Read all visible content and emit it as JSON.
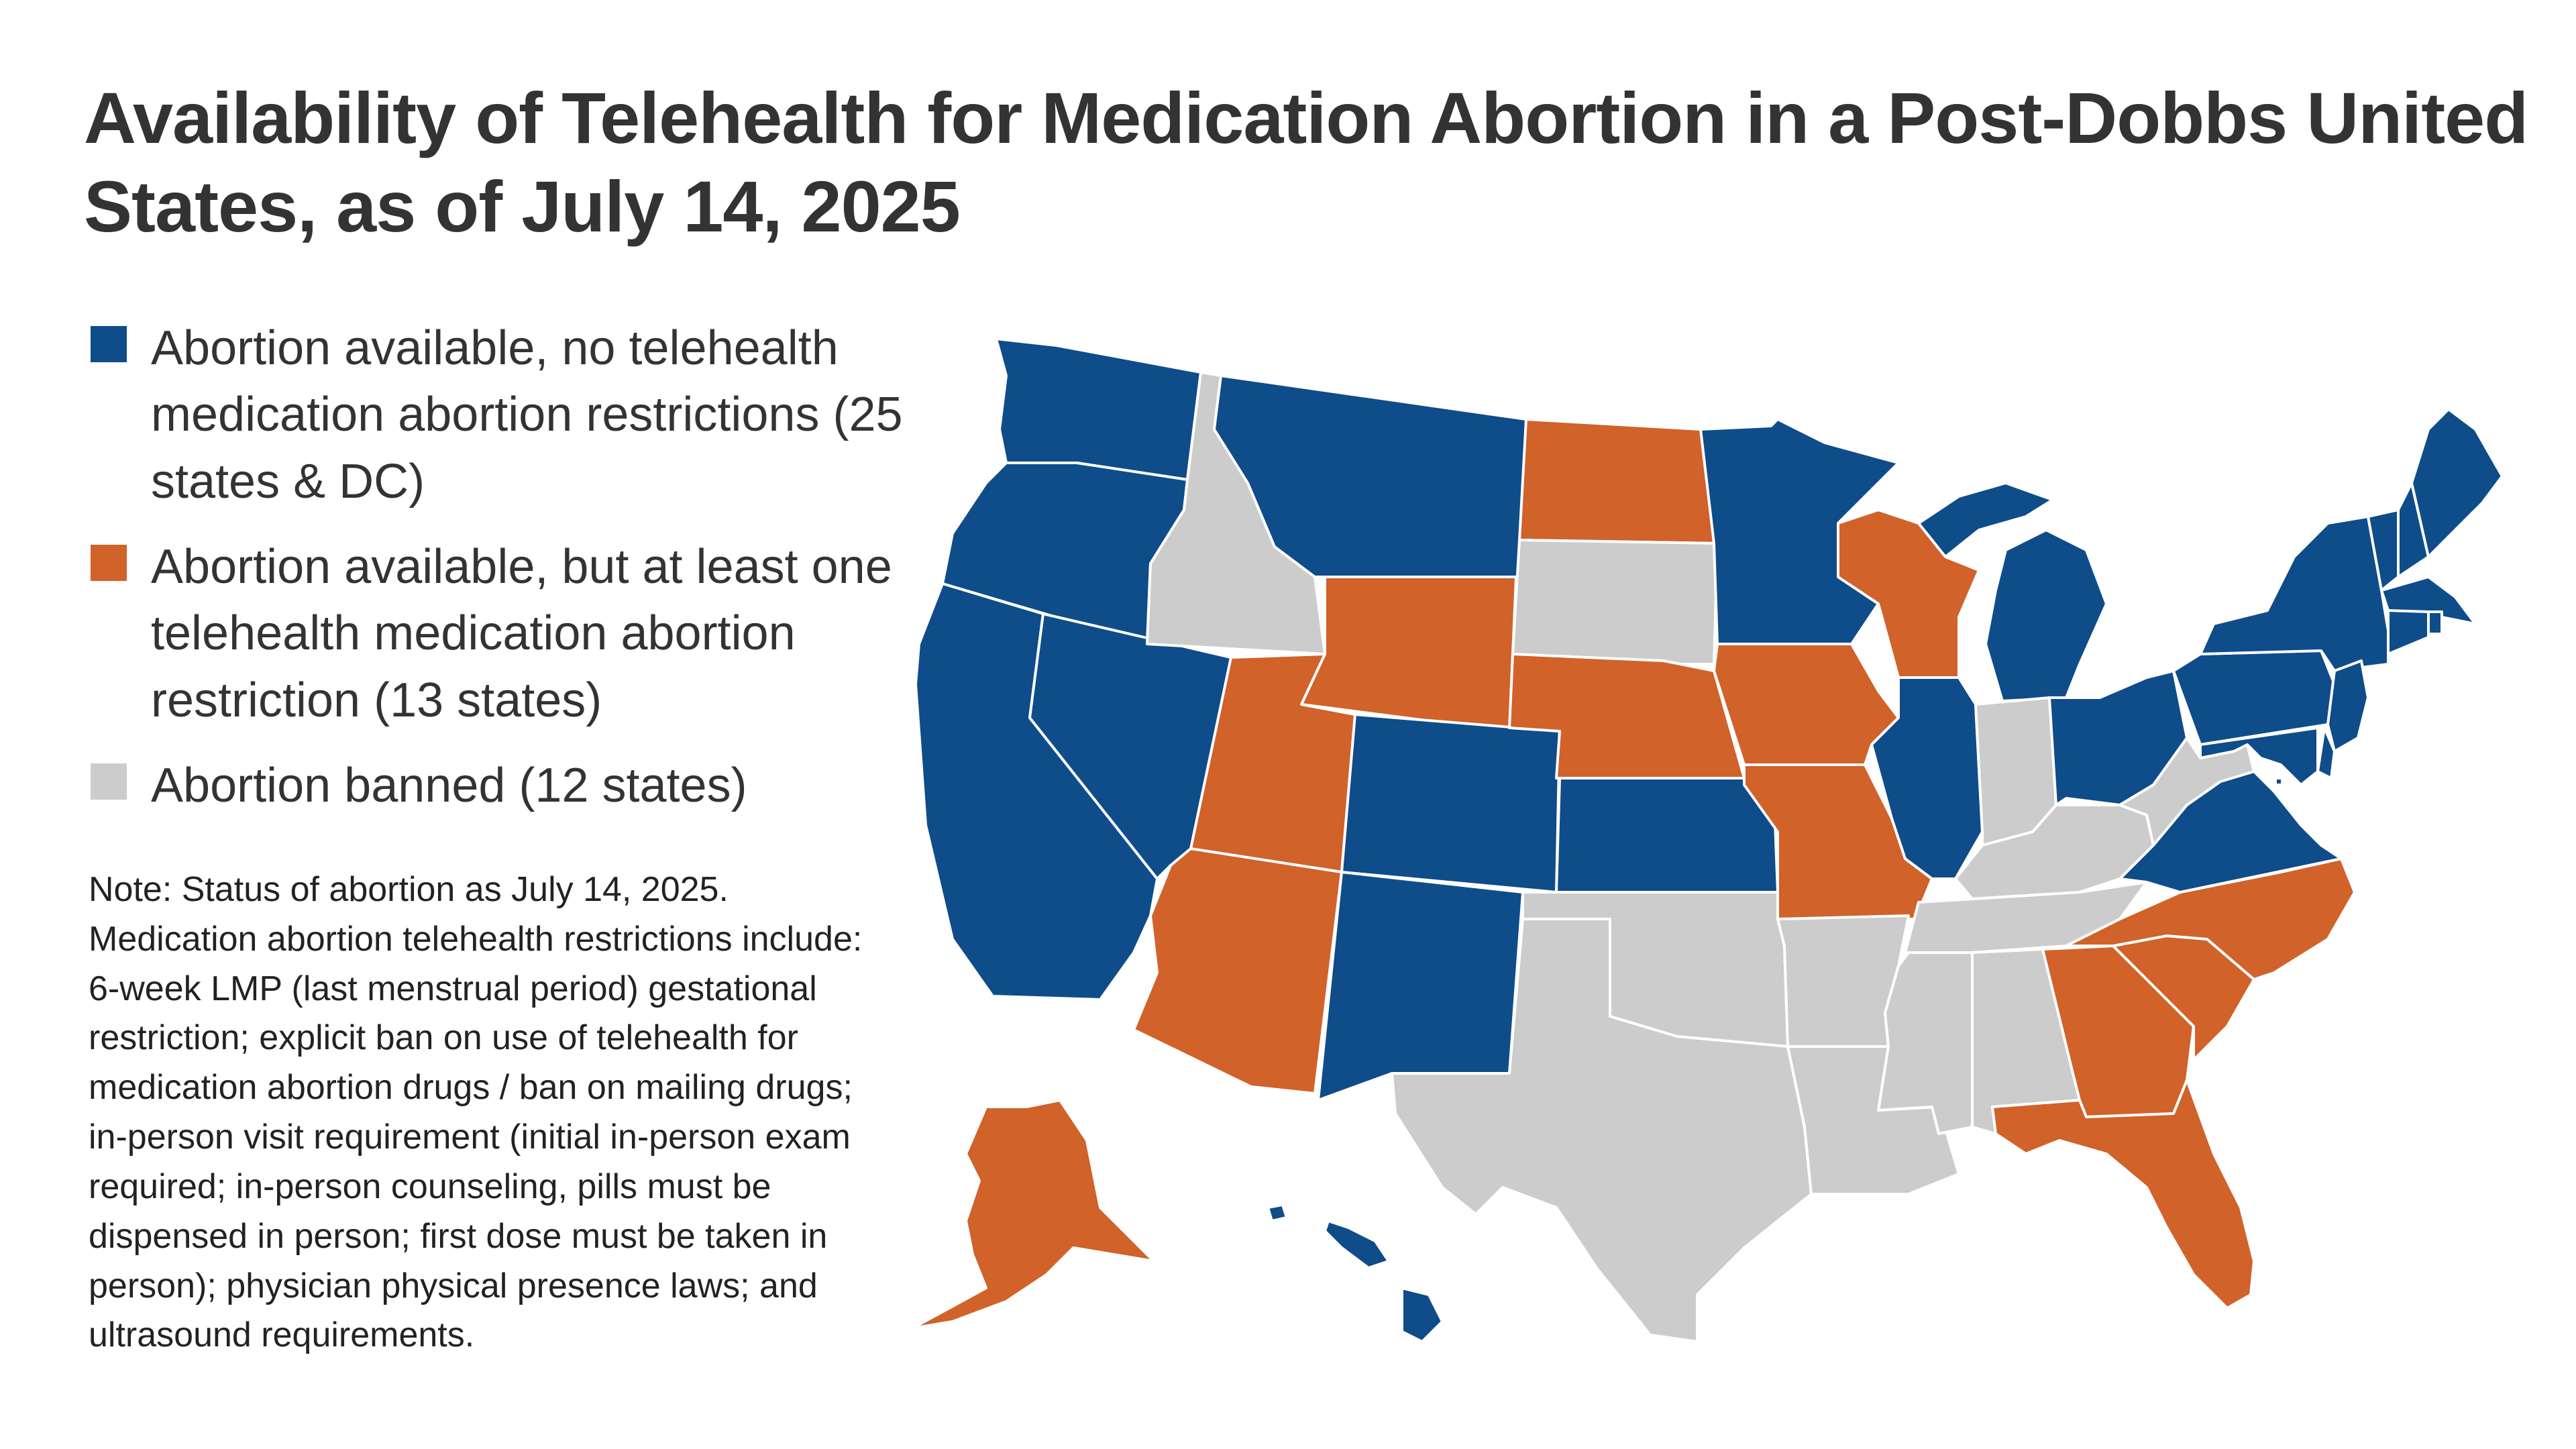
{
  "title": "Availability of Telehealth for Medication Abortion in a Post-Dobbs United States, as of July 14, 2025",
  "legend": [
    {
      "key": "available_no_restrictions",
      "label": "Abortion available, no telehealth medication abortion restrictions (25 states & DC)",
      "color": "#0f4c8a"
    },
    {
      "key": "available_with_restriction",
      "label": "Abortion available, but at least one telehealth medication abortion restriction (13 states)",
      "color": "#d0622a"
    },
    {
      "key": "banned",
      "label": "Abortion banned (12 states)",
      "color": "#cccccc"
    }
  ],
  "note": "Note: Status of abortion as July 14, 2025. Medication abortion telehealth restrictions include: 6-week LMP (last menstrual period) gestational restriction; explicit ban on use of telehealth for medication abortion drugs / ban on mailing drugs; in-person visit requirement (initial in-person exam required; in-person counseling, pills must be dispensed in person; first dose must be taken in person); physician physical presence laws; and ultrasound requirements.",
  "map": {
    "states": [
      {
        "abbr": "WA",
        "name": "Washington",
        "status": "available_no_restrictions"
      },
      {
        "abbr": "OR",
        "name": "Oregon",
        "status": "available_no_restrictions"
      },
      {
        "abbr": "CA",
        "name": "California",
        "status": "available_no_restrictions"
      },
      {
        "abbr": "NV",
        "name": "Nevada",
        "status": "available_no_restrictions"
      },
      {
        "abbr": "ID",
        "name": "Idaho",
        "status": "banned"
      },
      {
        "abbr": "MT",
        "name": "Montana",
        "status": "available_no_restrictions"
      },
      {
        "abbr": "WY",
        "name": "Wyoming",
        "status": "available_with_restriction"
      },
      {
        "abbr": "UT",
        "name": "Utah",
        "status": "available_with_restriction"
      },
      {
        "abbr": "AZ",
        "name": "Arizona",
        "status": "available_with_restriction"
      },
      {
        "abbr": "CO",
        "name": "Colorado",
        "status": "available_no_restrictions"
      },
      {
        "abbr": "NM",
        "name": "New Mexico",
        "status": "available_no_restrictions"
      },
      {
        "abbr": "ND",
        "name": "North Dakota",
        "status": "available_with_restriction"
      },
      {
        "abbr": "SD",
        "name": "South Dakota",
        "status": "banned"
      },
      {
        "abbr": "NE",
        "name": "Nebraska",
        "status": "available_with_restriction"
      },
      {
        "abbr": "KS",
        "name": "Kansas",
        "status": "available_no_restrictions"
      },
      {
        "abbr": "OK",
        "name": "Oklahoma",
        "status": "banned"
      },
      {
        "abbr": "TX",
        "name": "Texas",
        "status": "banned"
      },
      {
        "abbr": "MN",
        "name": "Minnesota",
        "status": "available_no_restrictions"
      },
      {
        "abbr": "IA",
        "name": "Iowa",
        "status": "available_with_restriction"
      },
      {
        "abbr": "MO",
        "name": "Missouri",
        "status": "available_with_restriction"
      },
      {
        "abbr": "AR",
        "name": "Arkansas",
        "status": "banned"
      },
      {
        "abbr": "LA",
        "name": "Louisiana",
        "status": "banned"
      },
      {
        "abbr": "WI",
        "name": "Wisconsin",
        "status": "available_with_restriction"
      },
      {
        "abbr": "IL",
        "name": "Illinois",
        "status": "available_no_restrictions"
      },
      {
        "abbr": "MI",
        "name": "Michigan",
        "status": "available_no_restrictions"
      },
      {
        "abbr": "IN",
        "name": "Indiana",
        "status": "banned"
      },
      {
        "abbr": "OH",
        "name": "Ohio",
        "status": "available_no_restrictions"
      },
      {
        "abbr": "KY",
        "name": "Kentucky",
        "status": "banned"
      },
      {
        "abbr": "TN",
        "name": "Tennessee",
        "status": "banned"
      },
      {
        "abbr": "MS",
        "name": "Mississippi",
        "status": "banned"
      },
      {
        "abbr": "AL",
        "name": "Alabama",
        "status": "banned"
      },
      {
        "abbr": "GA",
        "name": "Georgia",
        "status": "available_with_restriction"
      },
      {
        "abbr": "FL",
        "name": "Florida",
        "status": "available_with_restriction"
      },
      {
        "abbr": "SC",
        "name": "South Carolina",
        "status": "available_with_restriction"
      },
      {
        "abbr": "NC",
        "name": "North Carolina",
        "status": "available_with_restriction"
      },
      {
        "abbr": "VA",
        "name": "Virginia",
        "status": "available_no_restrictions"
      },
      {
        "abbr": "WV",
        "name": "West Virginia",
        "status": "banned"
      },
      {
        "abbr": "PA",
        "name": "Pennsylvania",
        "status": "available_no_restrictions"
      },
      {
        "abbr": "NY",
        "name": "New York",
        "status": "available_no_restrictions"
      },
      {
        "abbr": "VT",
        "name": "Vermont",
        "status": "available_no_restrictions"
      },
      {
        "abbr": "NH",
        "name": "New Hampshire",
        "status": "available_no_restrictions"
      },
      {
        "abbr": "ME",
        "name": "Maine",
        "status": "available_no_restrictions"
      },
      {
        "abbr": "MA",
        "name": "Massachusetts",
        "status": "available_no_restrictions"
      },
      {
        "abbr": "RI",
        "name": "Rhode Island",
        "status": "available_no_restrictions"
      },
      {
        "abbr": "CT",
        "name": "Connecticut",
        "status": "available_no_restrictions"
      },
      {
        "abbr": "NJ",
        "name": "New Jersey",
        "status": "available_no_restrictions"
      },
      {
        "abbr": "DE",
        "name": "Delaware",
        "status": "available_no_restrictions"
      },
      {
        "abbr": "MD",
        "name": "Maryland",
        "status": "available_no_restrictions"
      },
      {
        "abbr": "DC",
        "name": "District of Columbia",
        "status": "available_no_restrictions"
      },
      {
        "abbr": "AK",
        "name": "Alaska",
        "status": "available_with_restriction"
      },
      {
        "abbr": "HI",
        "name": "Hawaii",
        "status": "available_no_restrictions"
      }
    ]
  }
}
